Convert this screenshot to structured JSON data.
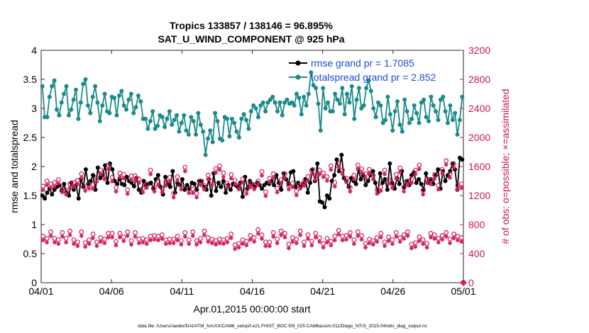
{
  "chart_data": {
    "type": "line",
    "title_line1": "Tropics 133857 / 138146 = 96.895%",
    "title_line2": "SAT_U_WIND_COMPONENT @ 925 hPa",
    "xlabel": "Apr.01,2015 00:00:00 start",
    "ylabel_left": "rmse and totalspread",
    "ylabel_right": "# of obs: o=possible; ×=assimilated",
    "footer": "data file: /Users/raeder/DAI/ATM_forcXX/CAM6_setup/f.e21.FHIST_BGC.f09_025.CAM6assim.011/Diags_NTrS_2015-04/obs_diag_output.nc",
    "x_ticks": [
      "04/01",
      "04/06",
      "04/11",
      "04/16",
      "04/21",
      "04/26",
      "05/01"
    ],
    "x_tick_days": [
      0,
      5,
      10,
      15,
      20,
      25,
      30
    ],
    "x_range_days": [
      0,
      30
    ],
    "ylim_left": [
      0,
      4
    ],
    "y_ticks_left": [
      "0",
      "0.5",
      "1",
      "1.5",
      "2",
      "2.5",
      "3",
      "3.5",
      "4"
    ],
    "ylim_right": [
      0,
      3200
    ],
    "y_ticks_right": [
      "0",
      "400",
      "800",
      "1200",
      "1600",
      "2000",
      "2400",
      "2800",
      "3200"
    ],
    "legend": [
      "rmse grand pr = 1.7085",
      "totalspread grand pr = 2.852"
    ],
    "legend_location": "top-right",
    "colors": {
      "rmse": "#000000",
      "spread": "#1b8a8a",
      "obs": "#d11f5c",
      "legend_text": "#1a4fd6",
      "right_axis": "#c8155b"
    },
    "series": [
      {
        "name": "rmse",
        "values": [
          1.5,
          1.45,
          1.55,
          1.62,
          1.52,
          1.6,
          1.65,
          1.68,
          1.58,
          1.7,
          1.55,
          1.5,
          1.72,
          1.6,
          1.68,
          1.45,
          1.78,
          1.65,
          1.95,
          1.7,
          1.75,
          1.85,
          1.6,
          1.98,
          1.8,
          1.85,
          2.02,
          1.72,
          2.05,
          1.95,
          1.75,
          1.7,
          1.78,
          1.7,
          1.68,
          1.82,
          1.75,
          1.72,
          1.66,
          1.8,
          1.6,
          1.55,
          1.75,
          1.68,
          1.7,
          1.72,
          1.62,
          1.78,
          1.85,
          1.65,
          1.52,
          1.82,
          1.7,
          1.65,
          1.92,
          1.55,
          1.72,
          1.68,
          1.78,
          1.6,
          1.68,
          1.62,
          1.72,
          1.7,
          1.6,
          1.75,
          1.75,
          1.65,
          1.6,
          1.78,
          1.5,
          1.88,
          1.58,
          1.72,
          1.65,
          1.75,
          1.55,
          1.68,
          1.6,
          1.7,
          1.68,
          1.65,
          1.72,
          1.48,
          1.82,
          1.62,
          1.75,
          1.7,
          1.65,
          1.72,
          1.68,
          1.62,
          1.68,
          1.72,
          1.7,
          1.75,
          1.68,
          1.85,
          1.72,
          1.6,
          1.88,
          1.78,
          1.7,
          1.9,
          1.92,
          1.65,
          1.72,
          1.65,
          1.7,
          1.78,
          1.55,
          1.72,
          1.95,
          1.75,
          2.05,
          1.4,
          1.38,
          1.3,
          1.5,
          1.45,
          1.75,
          1.85,
          2.12,
          1.92,
          2.2,
          1.8,
          1.75,
          1.65,
          1.8,
          1.75,
          1.7,
          1.95,
          1.78,
          1.85,
          1.68,
          1.75,
          1.85,
          1.92,
          1.72,
          1.55,
          1.88,
          1.72,
          1.78,
          1.6,
          2.05,
          1.72,
          1.62,
          1.8,
          1.7,
          1.92,
          1.65,
          1.75,
          1.68,
          1.85,
          1.9,
          1.72,
          1.78,
          1.7,
          1.6,
          1.88,
          1.72,
          1.78,
          1.7,
          1.85,
          1.95,
          1.62,
          1.92,
          1.75,
          1.85,
          1.92,
          2.05,
          1.95,
          1.6,
          2.15,
          2.12
        ]
      },
      {
        "name": "totalspread",
        "values": [
          3.38,
          2.85,
          2.85,
          3.2,
          3.38,
          3.48,
          2.98,
          2.88,
          3.1,
          3.25,
          3.38,
          2.88,
          2.98,
          3.15,
          3.32,
          2.82,
          3.1,
          3.42,
          3.5,
          3.05,
          2.92,
          3.2,
          3.38,
          3.1,
          2.78,
          3.05,
          3.25,
          2.95,
          2.92,
          3.2,
          3.18,
          2.88,
          3.22,
          3.3,
          3.05,
          2.98,
          3.15,
          3.25,
          2.92,
          3.02,
          3.22,
          3.12,
          2.82,
          2.82,
          2.65,
          2.78,
          2.95,
          2.65,
          2.7,
          2.88,
          2.85,
          2.68,
          2.82,
          2.95,
          2.72,
          2.8,
          2.88,
          2.6,
          2.75,
          2.88,
          2.62,
          2.55,
          2.85,
          2.78,
          2.55,
          2.92,
          2.72,
          2.6,
          2.2,
          2.48,
          2.62,
          2.42,
          2.92,
          2.78,
          2.48,
          2.45,
          2.85,
          2.82,
          2.52,
          2.82,
          2.75,
          2.6,
          2.5,
          2.82,
          2.9,
          2.8,
          2.65,
          2.95,
          3.05,
          3.0,
          2.85,
          3.05,
          3.1,
          2.95,
          3.1,
          3.15,
          3.2,
          3.1,
          2.95,
          3.1,
          2.88,
          3.1,
          3.15,
          3.08,
          3.1,
          3.05,
          3.25,
          3.18,
          2.9,
          3.2,
          3.05,
          3.25,
          3.62,
          3.4,
          3.35,
          3.08,
          2.62,
          3.35,
          3.0,
          3.1,
          2.95,
          2.95,
          3.25,
          3.15,
          3.08,
          3.35,
          2.9,
          3.25,
          3.1,
          3.38,
          2.82,
          3.15,
          3.35,
          3.0,
          3.05,
          3.35,
          3.48,
          3.3,
          3.0,
          2.85,
          3.1,
          3.05,
          2.75,
          2.8,
          3.2,
          2.9,
          2.62,
          2.95,
          3.12,
          2.72,
          2.6,
          3.15,
          2.95,
          2.75,
          2.82,
          3.05,
          2.92,
          2.75,
          3.1,
          3.15,
          2.85,
          2.78,
          3.2,
          3.05,
          2.95,
          2.8,
          3.15,
          3.2,
          2.95,
          2.75,
          3.05,
          2.8,
          2.92,
          2.55,
          2.8,
          3.2
        ]
      },
      {
        "name": "obs_possible_high",
        "values": [
          1330,
          1400,
          1360,
          1380,
          1420,
          1300,
          1270,
          1360,
          1380,
          1410,
          1500,
          1320,
          1350,
          1350,
          1450,
          1550,
          1480,
          1620,
          1450,
          1310,
          1510,
          1490,
          1280,
          1470,
          1470,
          1430,
          1300,
          1360,
          1550,
          1310,
          1400,
          1300,
          1390,
          1450,
          1230,
          1460,
          1340,
          1590,
          1290,
          1290,
          1230,
          1400,
          1340,
          1480,
          1400,
          1570,
          1610,
          1510,
          1370,
          1490,
          1410,
          1340,
          1430,
          1280,
          1370,
          1340,
          1400,
          1530,
          1250,
          1440,
          1500,
          1300,
          1420,
          1500,
          1340,
          1370,
          1260,
          1350,
          1390,
          1460,
          1550,
          1470,
          1550,
          1510,
          1460,
          1610,
          1380,
          1640,
          1550,
          1440,
          1310,
          1480,
          1620,
          1570,
          1500,
          1560,
          1480,
          1280,
          1320,
          1550,
          1420,
          1360,
          1490,
          1580,
          1310,
          1400,
          1430,
          1550,
          1620,
          1270,
          1430,
          1410,
          1490,
          1340,
          1560,
          1680,
          1500,
          1640,
          1340,
          1360
        ]
      },
      {
        "name": "obs_possible_low",
        "values": [
          640,
          610,
          700,
          610,
          590,
          690,
          610,
          710,
          590,
          560,
          700,
          550,
          590,
          670,
          560,
          620,
          600,
          680,
          680,
          570,
          680,
          630,
          700,
          580,
          690,
          600,
          610,
          590,
          640,
          650,
          640,
          660,
          590,
          600,
          600,
          640,
          580,
          690,
          590,
          700,
          580,
          610,
          710,
          620,
          600,
          580,
          600,
          590,
          610,
          670,
          520,
          540,
          590,
          570,
          650,
          620,
          730,
          660,
          560,
          560,
          690,
          600,
          710,
          680,
          530,
          620,
          600,
          710,
          560,
          660,
          570,
          680,
          620,
          540,
          610,
          570,
          640,
          720,
          640,
          650,
          690,
          590,
          700,
          650,
          540,
          600,
          580,
          620,
          680,
          560,
          630,
          590,
          690,
          620,
          660,
          700,
          530,
          550,
          630,
          590,
          540,
          680,
          660,
          610,
          650,
          690,
          600,
          670,
          640,
          620
        ]
      }
    ]
  }
}
